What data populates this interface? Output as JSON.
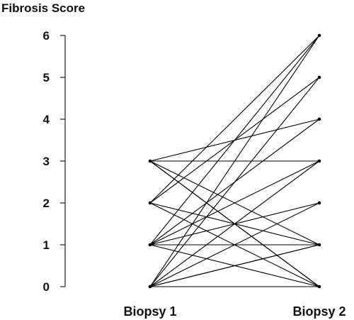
{
  "chart_data": {
    "type": "line",
    "title": "",
    "ylabel": "Fibrosis Score",
    "xlabel": "",
    "categories": [
      "Biopsy 1",
      "Biopsy 2"
    ],
    "yticks": [
      0,
      1,
      2,
      3,
      4,
      5,
      6
    ],
    "ylim": [
      0,
      6
    ],
    "grid": false,
    "line_color": "#000000",
    "pairs": [
      [
        3,
        3
      ],
      [
        3,
        1
      ],
      [
        3,
        0
      ],
      [
        3,
        0
      ],
      [
        3,
        4
      ],
      [
        2,
        1
      ],
      [
        2,
        0
      ],
      [
        2,
        5
      ],
      [
        2,
        6
      ],
      [
        1,
        6
      ],
      [
        1,
        1
      ],
      [
        1,
        2
      ],
      [
        1,
        3
      ],
      [
        1,
        4
      ],
      [
        1,
        0
      ],
      [
        0,
        0
      ],
      [
        0,
        1
      ],
      [
        0,
        1
      ],
      [
        0,
        2
      ],
      [
        0,
        3
      ],
      [
        0,
        5
      ],
      [
        0,
        6
      ]
    ]
  }
}
